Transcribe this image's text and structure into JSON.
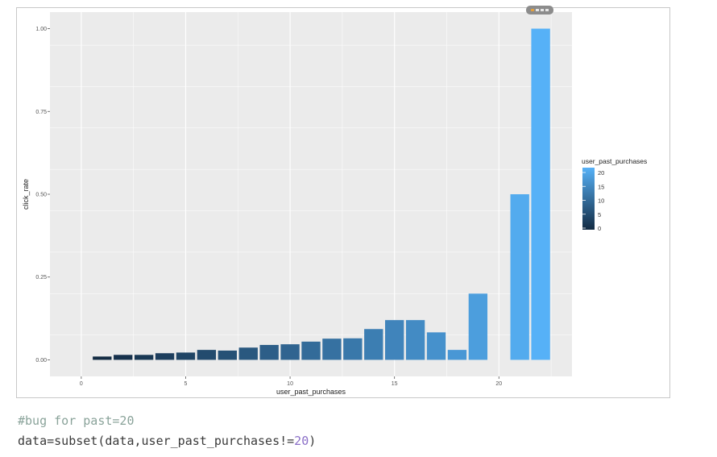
{
  "chart_data": {
    "type": "bar",
    "xlabel": "user_past_purchases",
    "ylabel": "click_rate",
    "x_ticks": [
      "0",
      "5",
      "10",
      "15",
      "20"
    ],
    "y_ticks": [
      "0.00",
      "0.25",
      "0.50",
      "0.75",
      "1.00"
    ],
    "xlim": [
      -1.5,
      23.5
    ],
    "ylim": [
      -0.05,
      1.05
    ],
    "grid": true,
    "legend": {
      "title": "user_past_purchases",
      "position": "right",
      "labels": [
        "20",
        "15",
        "10",
        "5",
        "0"
      ]
    },
    "colors": {
      "low": "#132b43",
      "high": "#56b1f7",
      "panel": "#ebebeb",
      "grid": "#ffffff"
    },
    "x": [
      1,
      2,
      3,
      4,
      5,
      6,
      7,
      8,
      9,
      10,
      11,
      12,
      13,
      14,
      15,
      16,
      17,
      18,
      19,
      21,
      22
    ],
    "values": [
      0.01,
      0.015,
      0.015,
      0.02,
      0.022,
      0.03,
      0.028,
      0.037,
      0.045,
      0.047,
      0.055,
      0.064,
      0.065,
      0.093,
      0.12,
      0.12,
      0.083,
      0.03,
      0.2,
      0.5,
      1.0
    ]
  },
  "code": {
    "comment": "#bug for past=20",
    "line_prefix": "data=subset(data,user_past_purchases!=",
    "line_number": "20",
    "line_suffix": ")"
  }
}
